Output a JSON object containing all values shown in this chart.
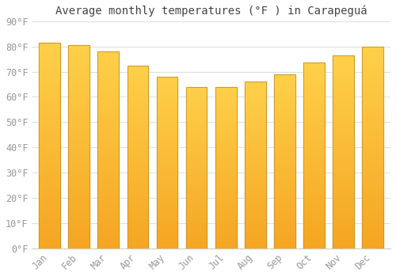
{
  "title": "Average monthly temperatures (°F ) in Carapeguá",
  "months": [
    "Jan",
    "Feb",
    "Mar",
    "Apr",
    "May",
    "Jun",
    "Jul",
    "Aug",
    "Sep",
    "Oct",
    "Nov",
    "Dec"
  ],
  "values": [
    81.5,
    80.5,
    78.0,
    72.5,
    68.0,
    64.0,
    64.0,
    66.0,
    69.0,
    73.5,
    76.5,
    80.0
  ],
  "bar_color_bottom": "#F5A623",
  "bar_color_top": "#FFD04A",
  "bar_color_center": "#FFBE1A",
  "bar_edge_color": "#C8922A",
  "background_color": "#FFFFFF",
  "grid_color": "#E0E0E0",
  "text_color": "#999999",
  "ylim": [
    0,
    90
  ],
  "yticks": [
    0,
    10,
    20,
    30,
    40,
    50,
    60,
    70,
    80,
    90
  ],
  "ytick_labels": [
    "0°F",
    "10°F",
    "20°F",
    "30°F",
    "40°F",
    "50°F",
    "60°F",
    "70°F",
    "80°F",
    "90°F"
  ],
  "title_fontsize": 10,
  "tick_fontsize": 8.5,
  "font_family": "monospace"
}
